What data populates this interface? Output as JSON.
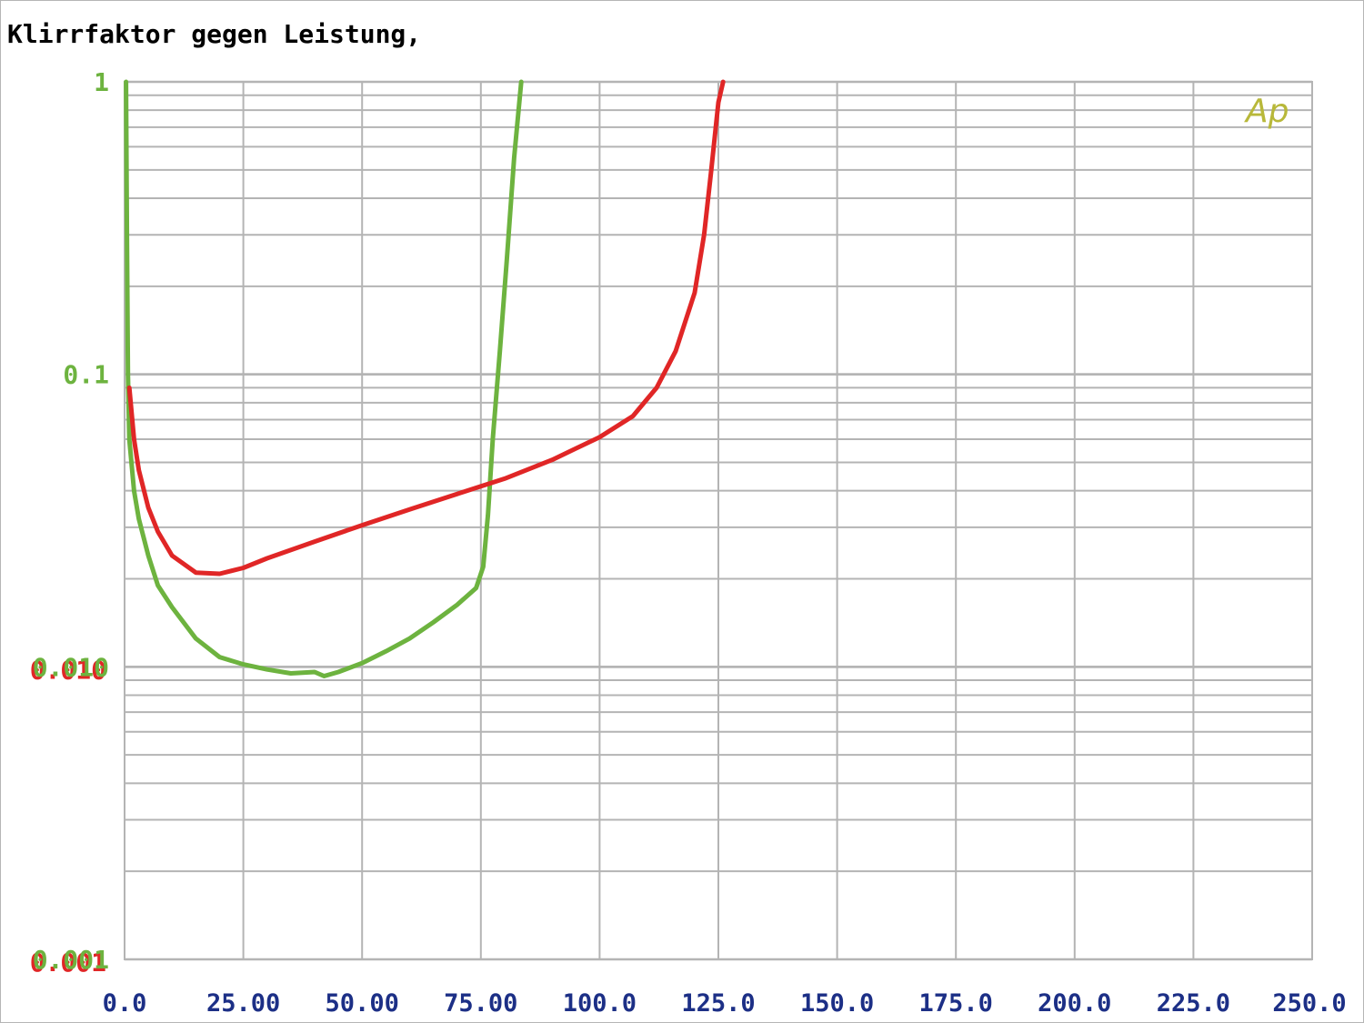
{
  "chart_data": {
    "type": "line",
    "title": "Klirrfaktor gegen Leistung,",
    "xlabel": "",
    "ylabel": "",
    "x_scale": "linear",
    "y_scale": "log",
    "xlim": [
      0,
      250
    ],
    "ylim": [
      0.001,
      1
    ],
    "x_ticks": [
      "0.0",
      "25.00",
      "50.00",
      "75.00",
      "100.0",
      "125.0",
      "150.0",
      "175.0",
      "200.0",
      "225.0",
      "250.0"
    ],
    "y_ticks": [
      {
        "value": 1,
        "label": "1"
      },
      {
        "value": 0.1,
        "label": "0.1"
      },
      {
        "value": 0.01,
        "label": "0.010"
      },
      {
        "value": 0.001,
        "label": "0.001"
      }
    ],
    "grid": true,
    "series": [
      {
        "color": "#6db33f",
        "points": [
          [
            0.3,
            1.0
          ],
          [
            0.5,
            0.3
          ],
          [
            0.7,
            0.1
          ],
          [
            1.0,
            0.06
          ],
          [
            2.0,
            0.04
          ],
          [
            3.0,
            0.032
          ],
          [
            5.0,
            0.024
          ],
          [
            7.0,
            0.019
          ],
          [
            10.0,
            0.016
          ],
          [
            15.0,
            0.0125
          ],
          [
            20.0,
            0.0108
          ],
          [
            25.0,
            0.0102
          ],
          [
            30.0,
            0.0098
          ],
          [
            35.0,
            0.0095
          ],
          [
            40.0,
            0.0096
          ],
          [
            42.0,
            0.0093
          ],
          [
            45.0,
            0.0096
          ],
          [
            50.0,
            0.0103
          ],
          [
            55.0,
            0.0113
          ],
          [
            60.0,
            0.0125
          ],
          [
            65.0,
            0.0142
          ],
          [
            70.0,
            0.0163
          ],
          [
            74.0,
            0.0186
          ],
          [
            75.5,
            0.022
          ],
          [
            76.5,
            0.033
          ],
          [
            77.5,
            0.06
          ],
          [
            79.0,
            0.12
          ],
          [
            80.5,
            0.25
          ],
          [
            82.0,
            0.55
          ],
          [
            83.5,
            1.0
          ]
        ]
      },
      {
        "color": "#e02626",
        "points": [
          [
            1.0,
            0.09
          ],
          [
            2.0,
            0.06
          ],
          [
            3.0,
            0.047
          ],
          [
            5.0,
            0.035
          ],
          [
            7.0,
            0.029
          ],
          [
            10.0,
            0.024
          ],
          [
            15.0,
            0.021
          ],
          [
            20.0,
            0.0208
          ],
          [
            25.0,
            0.0218
          ],
          [
            30.0,
            0.0235
          ],
          [
            40.0,
            0.0268
          ],
          [
            50.0,
            0.0305
          ],
          [
            60.0,
            0.0345
          ],
          [
            70.0,
            0.039
          ],
          [
            80.0,
            0.044
          ],
          [
            90.0,
            0.051
          ],
          [
            100.0,
            0.061
          ],
          [
            107.0,
            0.072
          ],
          [
            112.0,
            0.09
          ],
          [
            116.0,
            0.12
          ],
          [
            120.0,
            0.19
          ],
          [
            122.0,
            0.3
          ],
          [
            123.5,
            0.5
          ],
          [
            125.0,
            0.85
          ],
          [
            126.0,
            1.0
          ]
        ]
      }
    ],
    "logo": {
      "text": "Ap",
      "color": "#b8b83a"
    }
  }
}
